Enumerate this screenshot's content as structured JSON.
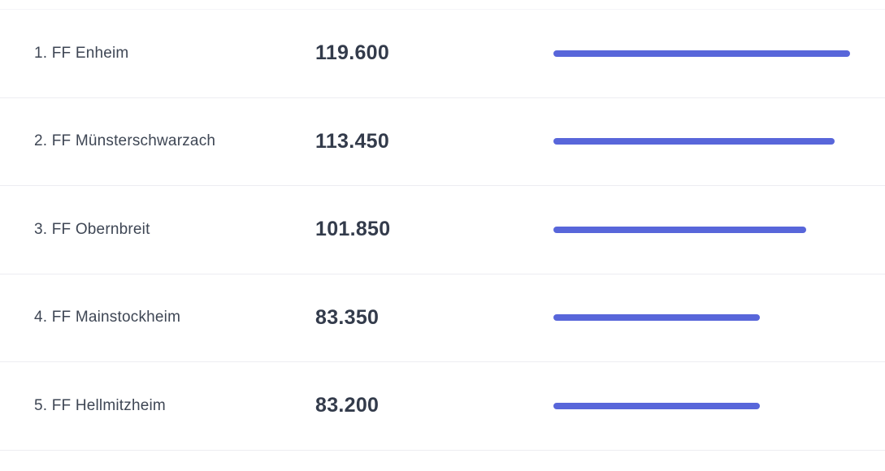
{
  "colors": {
    "background": "#ffffff",
    "bar": "#5866da",
    "name_text": "#3e4654",
    "value_text": "#333b4b",
    "divider": "#ededf1"
  },
  "chart_data": {
    "type": "bar",
    "orientation": "horizontal",
    "title": "",
    "xlabel": "",
    "ylabel": "",
    "grid": false,
    "legend": false,
    "xlim": [
      0,
      119600
    ],
    "categories": [
      "1. FF Enheim",
      "2. FF Münsterschwarzach",
      "3. FF Obernbreit",
      "4. FF Mainstockheim",
      "5. FF Hellmitzheim"
    ],
    "values": [
      119600,
      113450,
      101850,
      83350,
      83200
    ],
    "value_labels": [
      "119.600",
      "113.450",
      "101.850",
      "83.350",
      "83.200"
    ]
  }
}
